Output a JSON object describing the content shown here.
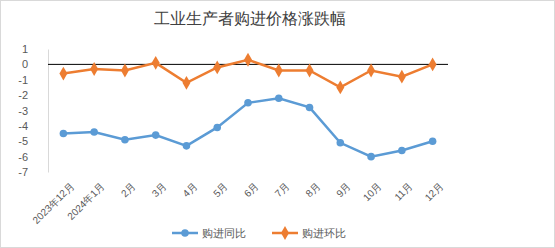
{
  "chart_data": {
    "type": "line",
    "title": "工业生产者购进价格涨跌幅",
    "categories": [
      "2023年12月",
      "2024年1月",
      "2月",
      "3月",
      "4月",
      "5月",
      "6月",
      "7月",
      "8月",
      "9月",
      "10月",
      "11月",
      "12月"
    ],
    "series": [
      {
        "name": "购进同比",
        "color": "#5b9bd5",
        "marker": "circle",
        "values": [
          -4.5,
          -4.4,
          -4.9,
          -4.6,
          -5.3,
          -4.1,
          -2.5,
          -2.2,
          -2.8,
          -5.1,
          -6.0,
          -5.6,
          -5.0
        ]
      },
      {
        "name": "购进环比",
        "color": "#ed7d31",
        "marker": "diamond",
        "values": [
          -0.6,
          -0.3,
          -0.4,
          0.1,
          -1.2,
          -0.2,
          0.3,
          -0.4,
          -0.4,
          -1.5,
          -0.4,
          -0.8,
          0.0
        ]
      }
    ],
    "ylim": [
      -7,
      1
    ],
    "yticks": [
      -7,
      -6,
      -5,
      -4,
      -3,
      -2,
      -1,
      0,
      1
    ],
    "grid": false,
    "legend": "bottom"
  }
}
